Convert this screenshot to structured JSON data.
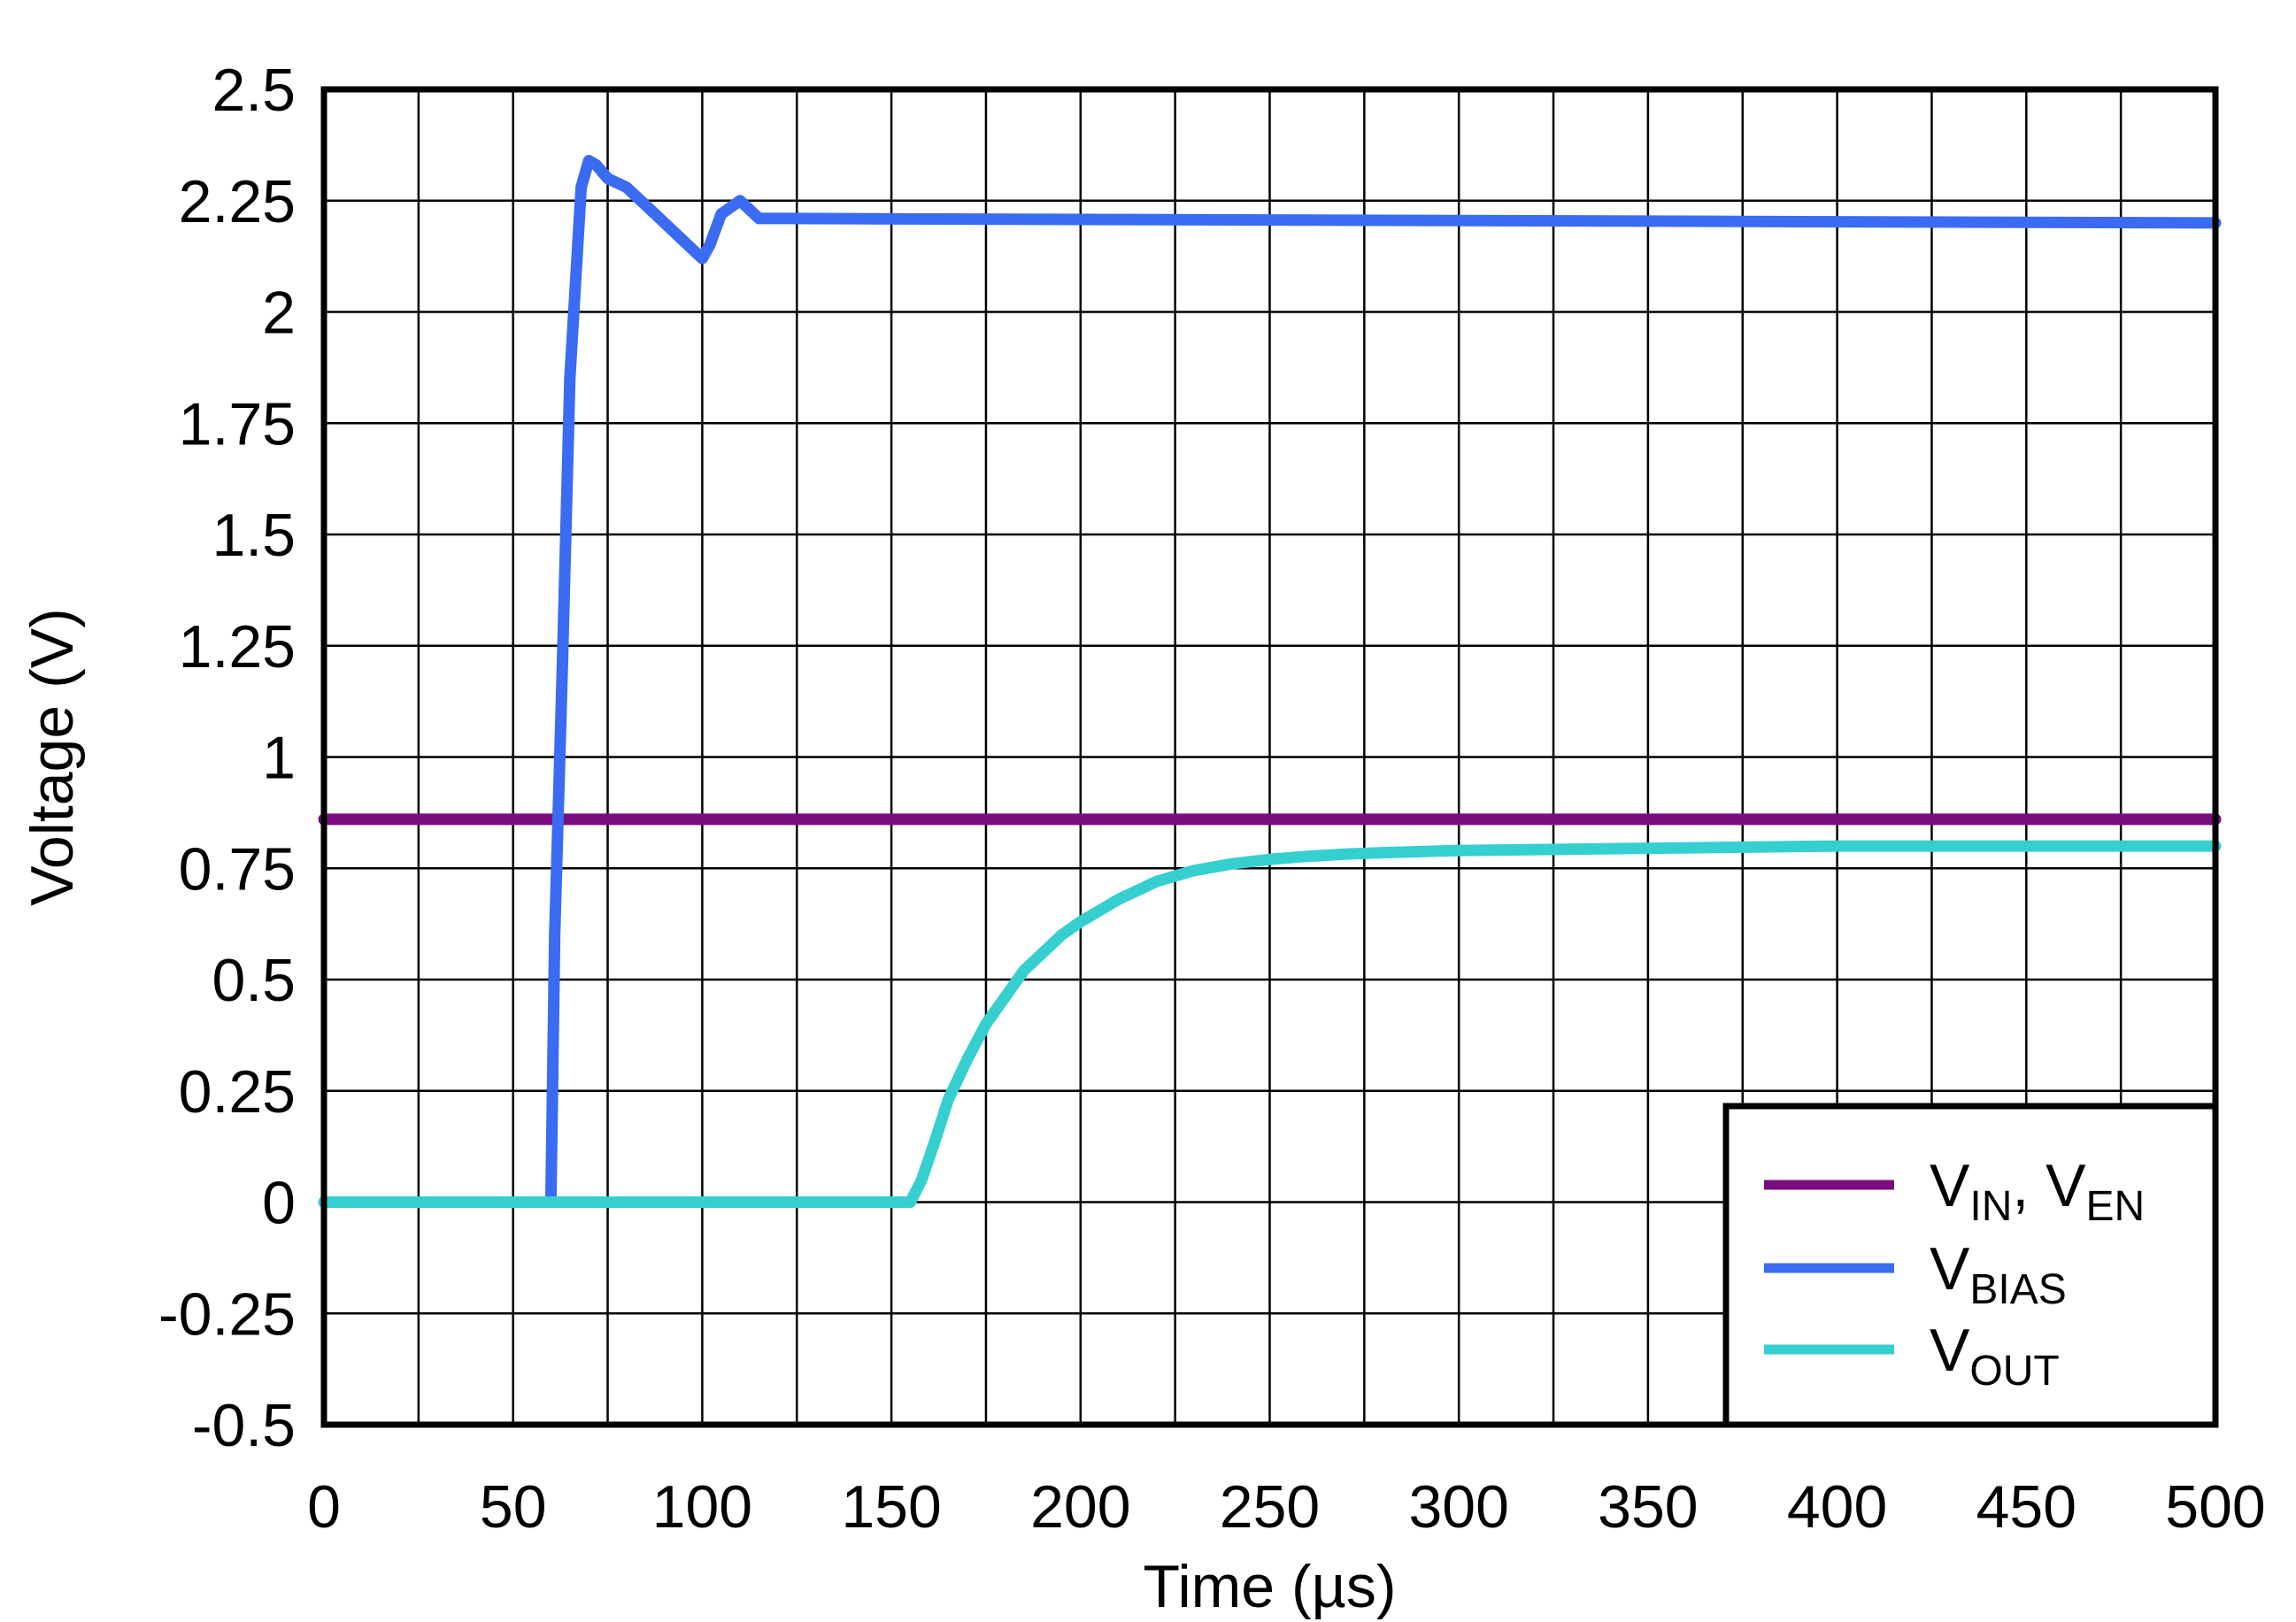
{
  "chart_data": {
    "type": "line",
    "title": "",
    "xlabel": "Time (µs)",
    "ylabel": "Voltage (V)",
    "xlim": [
      0,
      500
    ],
    "ylim": [
      -0.5,
      2.5
    ],
    "x_ticks": [
      "0",
      "50",
      "100",
      "150",
      "200",
      "250",
      "300",
      "350",
      "400",
      "450",
      "500"
    ],
    "y_ticks": [
      "2.5",
      "2.25",
      "2",
      "1.75",
      "1.5",
      "1.25",
      "1",
      "0.75",
      "0.5",
      "0.25",
      "0",
      "-0.25",
      "-0.5"
    ],
    "grid": true,
    "legend_position": "bottom-right",
    "series": [
      {
        "key": "vin",
        "legend": {
          "main": "V",
          "sub1": "IN",
          "sep": ", V",
          "sub2": "EN"
        },
        "color": "#7B0C7E",
        "x": [
          0,
          500
        ],
        "y": [
          0.86,
          0.86
        ]
      },
      {
        "key": "vbias",
        "legend": {
          "main": "V",
          "sub1": "BIAS"
        },
        "color": "#3A6BF2",
        "x": [
          0,
          60,
          61,
          63,
          65,
          68,
          70,
          72,
          75,
          80,
          85,
          90,
          95,
          100,
          102,
          105,
          110,
          115,
          120,
          500
        ],
        "y": [
          0,
          0,
          0.6,
          1.2,
          1.85,
          2.28,
          2.34,
          2.33,
          2.3,
          2.28,
          2.24,
          2.2,
          2.16,
          2.12,
          2.15,
          2.22,
          2.25,
          2.21,
          2.21,
          2.2
        ]
      },
      {
        "key": "vout",
        "legend": {
          "main": "V",
          "sub1": "OUT"
        },
        "color": "#36CFCF",
        "x": [
          0,
          155,
          158,
          162,
          165,
          170,
          175,
          180,
          185,
          190,
          195,
          200,
          210,
          220,
          230,
          240,
          250,
          260,
          270,
          280,
          300,
          350,
          400,
          450,
          500
        ],
        "y": [
          0,
          0,
          0.05,
          0.15,
          0.23,
          0.32,
          0.4,
          0.46,
          0.52,
          0.56,
          0.6,
          0.63,
          0.68,
          0.72,
          0.745,
          0.76,
          0.77,
          0.777,
          0.782,
          0.785,
          0.79,
          0.795,
          0.8,
          0.8,
          0.8
        ]
      }
    ]
  }
}
